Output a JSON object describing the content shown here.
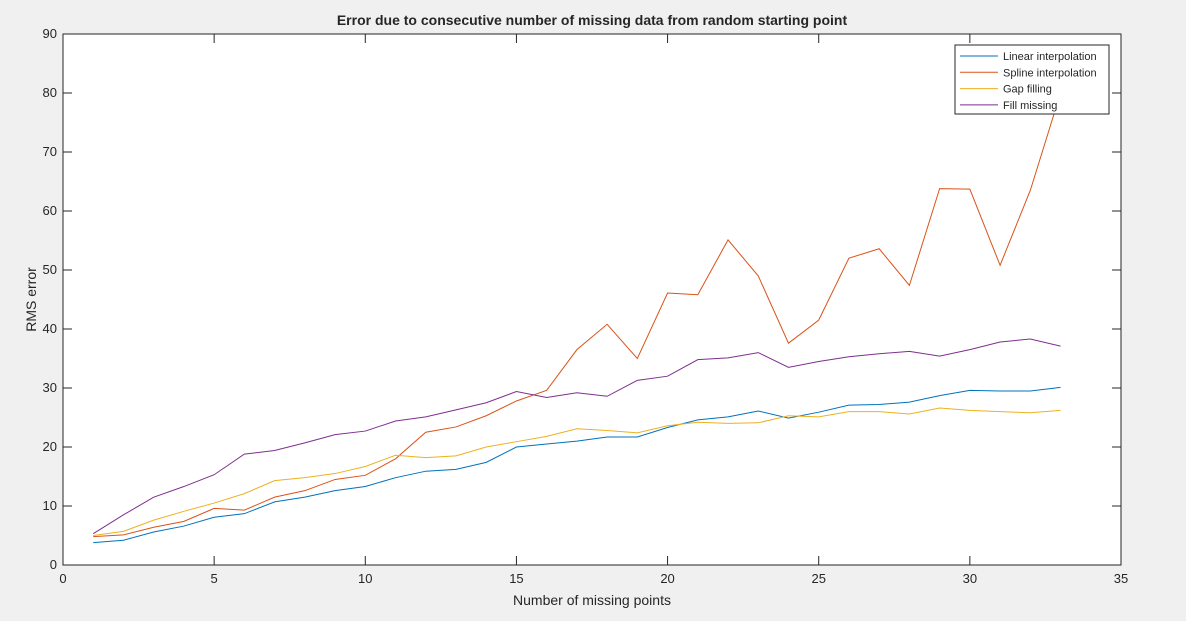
{
  "chart_data": {
    "type": "line",
    "title": "Error due to consecutive number of missing data from random starting point",
    "xlabel": "Number of missing points",
    "ylabel": "RMS error",
    "xlim": [
      0,
      35
    ],
    "ylim": [
      0,
      90
    ],
    "xticks": [
      0,
      5,
      10,
      15,
      20,
      25,
      30,
      35
    ],
    "yticks": [
      0,
      10,
      20,
      30,
      40,
      50,
      60,
      70,
      80,
      90
    ],
    "grid": false,
    "legend_position": "top-right",
    "x": [
      1,
      2,
      3,
      4,
      5,
      6,
      7,
      8,
      9,
      10,
      11,
      12,
      13,
      14,
      15,
      16,
      17,
      18,
      19,
      20,
      21,
      22,
      23,
      24,
      25,
      26,
      27,
      28,
      29,
      30,
      31,
      32,
      33
    ],
    "series": [
      {
        "name": "Linear interpolation",
        "color": "#0072bd",
        "values": [
          3.8,
          4.2,
          5.6,
          6.6,
          8.1,
          8.7,
          10.7,
          11.5,
          12.6,
          13.3,
          14.8,
          15.9,
          16.2,
          17.4,
          20.0,
          20.5,
          21.0,
          21.7,
          21.7,
          23.3,
          24.6,
          25.1,
          26.1,
          24.9,
          25.9,
          27.1,
          27.2,
          27.6,
          28.7,
          29.6,
          29.5,
          29.5,
          30.1
        ]
      },
      {
        "name": "Spline interpolation",
        "color": "#d95319",
        "values": [
          4.8,
          5.1,
          6.4,
          7.4,
          9.6,
          9.3,
          11.5,
          12.6,
          14.5,
          15.2,
          18.0,
          22.5,
          23.4,
          25.3,
          27.8,
          29.6,
          36.5,
          40.8,
          35.0,
          46.1,
          45.8,
          55.1,
          49.0,
          37.6,
          41.5,
          52.0,
          53.6,
          47.4,
          63.8,
          63.7,
          50.8,
          63.5,
          80.0
        ]
      },
      {
        "name": "Gap filling",
        "color": "#edb120",
        "values": [
          5.0,
          5.7,
          7.6,
          9.1,
          10.5,
          12.1,
          14.3,
          14.8,
          15.5,
          16.7,
          18.6,
          18.2,
          18.5,
          20.0,
          20.9,
          21.8,
          23.1,
          22.8,
          22.4,
          23.6,
          24.2,
          24.0,
          24.1,
          25.3,
          25.1,
          26.0,
          26.0,
          25.6,
          26.6,
          26.2,
          26.0,
          25.8,
          26.2
        ]
      },
      {
        "name": "Fill missing",
        "color": "#7e2f8e",
        "values": [
          5.3,
          8.5,
          11.5,
          13.3,
          15.3,
          18.8,
          19.4,
          20.7,
          22.1,
          22.7,
          24.4,
          25.1,
          26.3,
          27.5,
          29.4,
          28.4,
          29.2,
          28.6,
          31.3,
          32.0,
          34.8,
          35.1,
          36.0,
          33.5,
          34.5,
          35.3,
          35.8,
          36.2,
          35.4,
          36.5,
          37.8,
          38.3,
          37.1
        ]
      }
    ]
  }
}
